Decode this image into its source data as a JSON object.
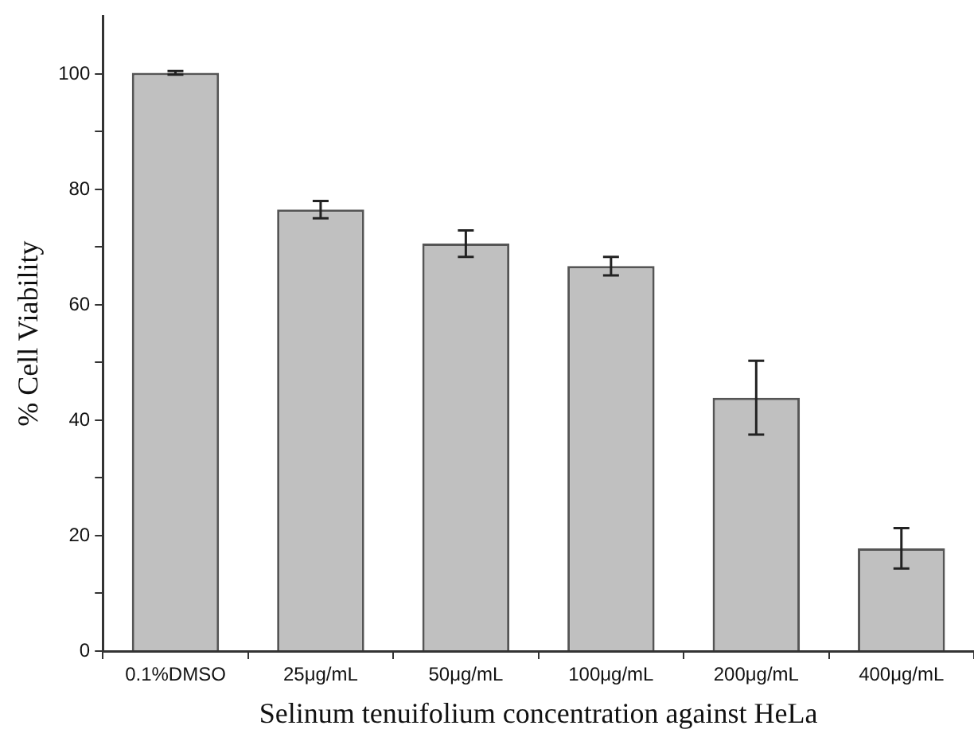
{
  "chart_data": {
    "type": "bar",
    "xlabel": "Selinum tenuifolium concentration against HeLa",
    "ylabel": "% Cell Viability",
    "categories": [
      "0.1%DMSO",
      "25μg/mL",
      "50μg/mL",
      "100μg/mL",
      "200μg/mL",
      "400μg/mL"
    ],
    "values": [
      100.2,
      76.5,
      70.6,
      66.7,
      43.9,
      17.8
    ],
    "errors": [
      0.3,
      1.5,
      2.3,
      1.6,
      6.4,
      3.5
    ],
    "color": "#c0c0c0",
    "ylim": [
      0,
      110
    ],
    "yticks": [
      0,
      {
        "value": 10,
        "label": null
      },
      20,
      {
        "value": 30,
        "label": null
      },
      40,
      {
        "value": 50,
        "label": null
      },
      60,
      {
        "value": 70,
        "label": null
      },
      80,
      {
        "value": 90,
        "label": null
      },
      100
    ],
    "grid": false,
    "legend": false
  }
}
